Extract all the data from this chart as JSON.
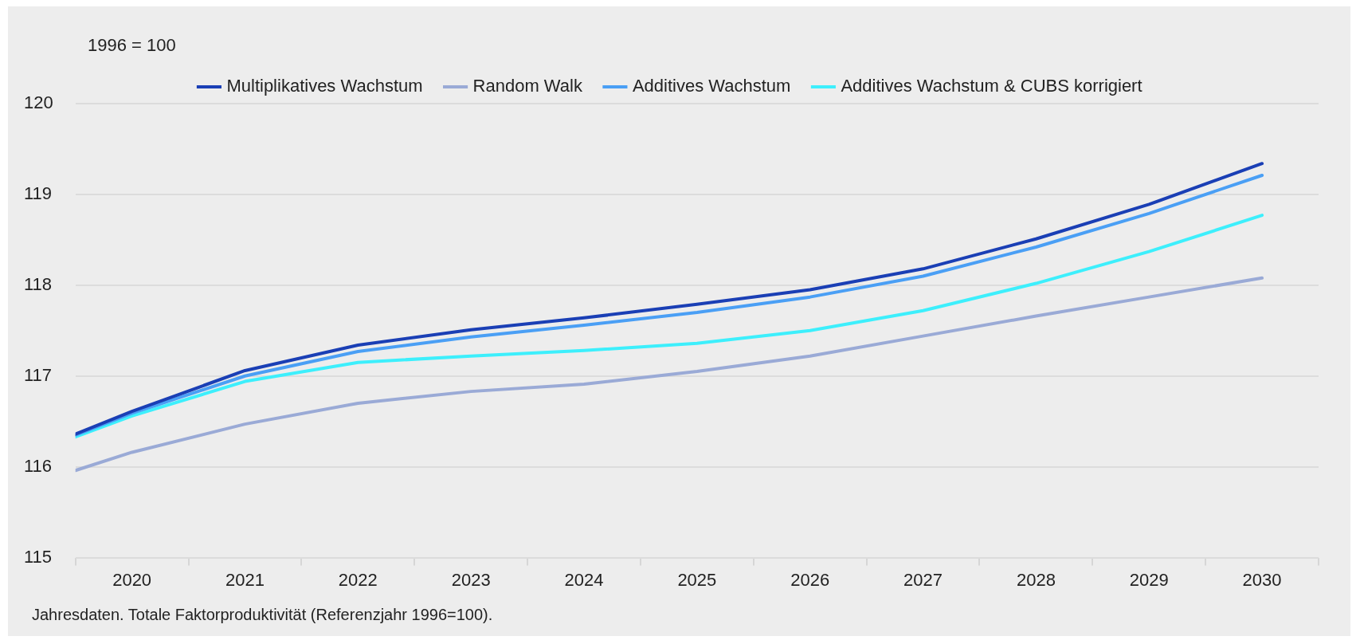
{
  "chart_data": {
    "type": "line",
    "ylabel": "1996 = 100",
    "x": [
      2019.5,
      2020,
      2021,
      2022,
      2023,
      2024,
      2025,
      2026,
      2027,
      2028,
      2029,
      2030
    ],
    "series": [
      {
        "name": "Multiplikatives Wachstum",
        "color": "#1a3fb5",
        "values": [
          116.36,
          116.61,
          117.06,
          117.34,
          117.51,
          117.64,
          117.79,
          117.95,
          118.18,
          118.51,
          118.89,
          119.34
        ]
      },
      {
        "name": "Random Walk",
        "color": "#9aaad6",
        "values": [
          115.96,
          116.16,
          116.47,
          116.7,
          116.83,
          116.91,
          117.05,
          117.22,
          117.44,
          117.66,
          117.87,
          118.08
        ]
      },
      {
        "name": "Additives Wachstum",
        "color": "#4a9ff5",
        "values": [
          116.35,
          116.59,
          117.0,
          117.27,
          117.43,
          117.56,
          117.7,
          117.87,
          118.1,
          118.42,
          118.79,
          119.21
        ]
      },
      {
        "name": "Additives Wachstum & CUBS korrigiert",
        "color": "#3deffc",
        "values": [
          116.33,
          116.56,
          116.94,
          117.15,
          117.22,
          117.28,
          117.36,
          117.5,
          117.72,
          118.02,
          118.37,
          118.77
        ]
      }
    ],
    "xlim": [
      2019.5,
      2030.5
    ],
    "xticks": [
      {
        "value": 2019.5,
        "label": null
      },
      {
        "value": 2020,
        "label": "2020"
      },
      {
        "value": 2020.5,
        "label": null
      },
      {
        "value": 2021,
        "label": "2021"
      },
      {
        "value": 2021.5,
        "label": null
      },
      {
        "value": 2022,
        "label": "2022"
      },
      {
        "value": 2022.5,
        "label": null
      },
      {
        "value": 2023,
        "label": "2023"
      },
      {
        "value": 2023.5,
        "label": null
      },
      {
        "value": 2024,
        "label": "2024"
      },
      {
        "value": 2024.5,
        "label": null
      },
      {
        "value": 2025,
        "label": "2025"
      },
      {
        "value": 2025.5,
        "label": null
      },
      {
        "value": 2026,
        "label": "2026"
      },
      {
        "value": 2026.5,
        "label": null
      },
      {
        "value": 2027,
        "label": "2027"
      },
      {
        "value": 2027.5,
        "label": null
      },
      {
        "value": 2028,
        "label": "2028"
      },
      {
        "value": 2028.5,
        "label": null
      },
      {
        "value": 2029,
        "label": "2029"
      },
      {
        "value": 2029.5,
        "label": null
      },
      {
        "value": 2030,
        "label": "2030"
      },
      {
        "value": 2030.5,
        "label": null
      }
    ],
    "ylim": [
      115,
      120
    ],
    "yticks": [
      115,
      116,
      117,
      118,
      119,
      120
    ],
    "grid": "y",
    "legend": "top",
    "marker": "none",
    "line_style": "solid",
    "annotations": [
      "Jahresdaten. Totale Faktorproduktivität (Referenzjahr 1996=100)."
    ]
  }
}
